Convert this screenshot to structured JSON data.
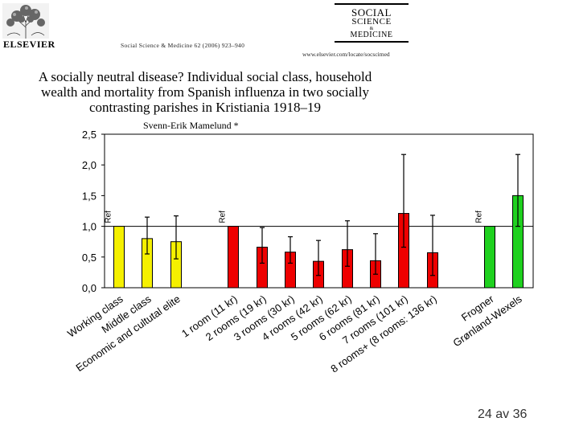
{
  "header": {
    "publisher": "ELSEVIER",
    "citation": "Social Science & Medicine 62 (2006) 923–940",
    "journal_logo": {
      "line1": "SOCIAL",
      "line2": "SCIENCE",
      "line3": "&",
      "line4": "MEDICINE"
    },
    "journal_url": "www.elsevier.com/locate/socscimed"
  },
  "paper": {
    "title": "A socially neutral disease? Individual social class, household\nwealth and mortality from Spanish influenza in two socially\ncontrasting parishes in Kristiania 1918–19",
    "author": "Svenn-Erik Mamelund *"
  },
  "chart_data": {
    "type": "bar",
    "title": "",
    "xlabel": "",
    "ylabel": "",
    "ylim": [
      0,
      2.5
    ],
    "yticks": [
      "0,0",
      "0,5",
      "1,0",
      "1,5",
      "2,0",
      "2,5"
    ],
    "reference_line": 1.0,
    "reference_label": "Ref",
    "colors": {
      "yellow": "#f5f000",
      "red": "#ee0000",
      "green": "#1fd11f"
    },
    "bars": [
      {
        "label": "Working class",
        "value": 1.0,
        "low": null,
        "high": null,
        "color": "yellow",
        "ref": true
      },
      {
        "label": "Middle class",
        "value": 0.8,
        "low": 0.55,
        "high": 1.15,
        "color": "yellow",
        "ref": false
      },
      {
        "label": "Economic and cultutal elite",
        "value": 0.75,
        "low": 0.47,
        "high": 1.17,
        "color": "yellow",
        "ref": false
      },
      {
        "label": "1 room (11 kr)",
        "value": 1.0,
        "low": null,
        "high": null,
        "color": "red",
        "ref": true
      },
      {
        "label": "2 rooms (19 kr)",
        "value": 0.66,
        "low": 0.4,
        "high": 0.98,
        "color": "red",
        "ref": false
      },
      {
        "label": "3 rooms (30 kr)",
        "value": 0.58,
        "low": 0.4,
        "high": 0.83,
        "color": "red",
        "ref": false
      },
      {
        "label": "4 rooms (42 kr)",
        "value": 0.43,
        "low": 0.2,
        "high": 0.77,
        "color": "red",
        "ref": false
      },
      {
        "label": "5 rooms (62 kr)",
        "value": 0.62,
        "low": 0.35,
        "high": 1.09,
        "color": "red",
        "ref": false
      },
      {
        "label": "6 rooms (81 kr)",
        "value": 0.44,
        "low": 0.22,
        "high": 0.88,
        "color": "red",
        "ref": false
      },
      {
        "label": "7 rooms (101 kr)",
        "value": 1.21,
        "low": 0.66,
        "high": 2.17,
        "color": "red",
        "ref": false
      },
      {
        "label": "8 rooms+ (8 rooms: 136 kr)",
        "value": 0.57,
        "low": 0.2,
        "high": 1.18,
        "color": "red",
        "ref": false
      },
      {
        "label": "Frogner",
        "value": 1.0,
        "low": null,
        "high": null,
        "color": "green",
        "ref": true
      },
      {
        "label": "Grønland-Wexels",
        "value": 1.5,
        "low": 1.0,
        "high": 2.17,
        "color": "green",
        "ref": false
      }
    ]
  },
  "footer": {
    "page": "24 av 36"
  }
}
